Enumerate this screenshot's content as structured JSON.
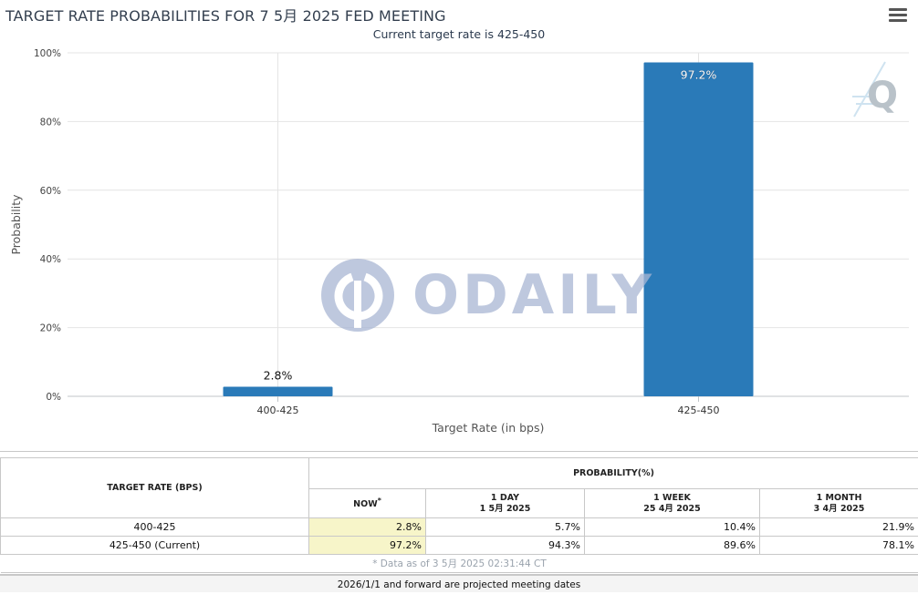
{
  "header": {
    "title": "TARGET RATE PROBABILITIES FOR 7 5月 2025 FED MEETING",
    "subtitle": "Current target rate is 425-450",
    "menu_icon": "hamburger-menu-icon"
  },
  "watermark": {
    "text": "ODAILY",
    "icon": "odaily-logo-icon"
  },
  "logo": {
    "text": "Q"
  },
  "chart_data": {
    "type": "bar",
    "title": "TARGET RATE PROBABILITIES FOR 7 5月 2025 FED MEETING",
    "subtitle": "Current target rate is 425-450",
    "categories": [
      "400-425",
      "425-450"
    ],
    "values": [
      2.8,
      97.2
    ],
    "data_labels": [
      "2.8%",
      "97.2%"
    ],
    "xlabel": "Target Rate (in bps)",
    "ylabel": "Probability",
    "ylim": [
      0,
      100
    ],
    "yticks": [
      0,
      20,
      40,
      60,
      80,
      100
    ],
    "ytick_labels": [
      "0%",
      "20%",
      "40%",
      "60%",
      "80%",
      "100%"
    ],
    "bar_color": "#2a7ab8",
    "grid": true
  },
  "table": {
    "target_header": "TARGET RATE (BPS)",
    "probability_header": "PROBABILITY(%)",
    "columns": [
      {
        "label": "NOW",
        "marker": "*",
        "date": ""
      },
      {
        "label": "1 DAY",
        "date": "1 5月 2025"
      },
      {
        "label": "1 WEEK",
        "date": "25 4月 2025"
      },
      {
        "label": "1 MONTH",
        "date": "3 4月 2025"
      }
    ],
    "rows": [
      {
        "rate": "400-425",
        "values": [
          "2.8%",
          "5.7%",
          "10.4%",
          "21.9%"
        ]
      },
      {
        "rate": "425-450 (Current)",
        "values": [
          "97.2%",
          "94.3%",
          "89.6%",
          "78.1%"
        ]
      }
    ],
    "as_of": "* Data as of 3 5月 2025 02:31:44 CT"
  },
  "footer": {
    "note": "2026/1/1 and forward are projected meeting dates"
  }
}
